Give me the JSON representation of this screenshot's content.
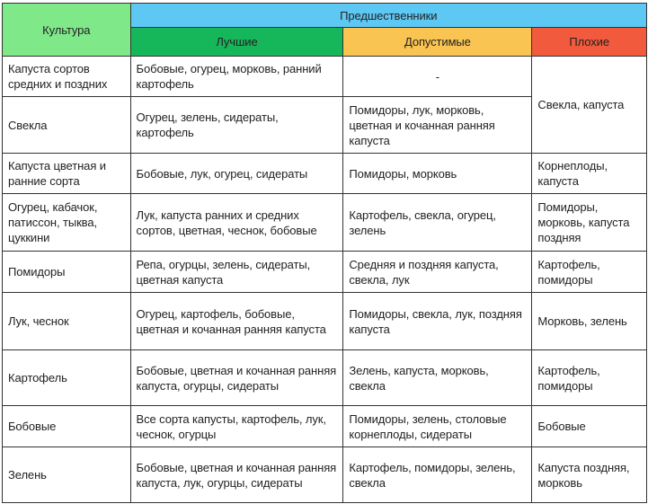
{
  "header": {
    "culture": "Культура",
    "predecessors": "Предшественники",
    "best": "Лучшие",
    "acceptable": "Допустимые",
    "bad": "Плохие"
  },
  "colors": {
    "culture": "#7fe889",
    "predecessors": "#5ec8f5",
    "best": "#16b75a",
    "acceptable": "#f9c451",
    "bad": "#f15a3c"
  },
  "rows": [
    {
      "culture": "Капуста сортов средних и поздних",
      "best": "Бобовые, огурец, морковь, ранний картофель",
      "acceptable": "-",
      "bad": "Свекла, капуста"
    },
    {
      "culture": "Свекла",
      "best": "Огурец, зелень, сидераты, картофель",
      "acceptable": "Помидоры, лук, морковь, цветная и кочанная ранняя капуста"
    },
    {
      "culture": "Капуста цветная и ранние сорта",
      "best": "Бобовые, лук, огурец, сидераты",
      "acceptable": "Помидоры, морковь",
      "bad": "Корнеплоды, капуста"
    },
    {
      "culture": "Огурец, кабачок, патиссон, тыква, цуккини",
      "best": "Лук, капуста ранних и средних сортов, цветная, чеснок, бобовые",
      "acceptable": "Картофель, свекла, огурец, зелень",
      "bad": "Помидоры, морковь, капуста поздняя"
    },
    {
      "culture": "Помидоры",
      "best": "Репа, огурцы, зелень, сидераты, цветная капуста",
      "acceptable": "Средняя и поздняя капуста, свекла, лук",
      "bad": "Картофель, помидоры"
    },
    {
      "culture": "Лук, чеснок",
      "best": "Огурец, картофель, бобовые, цветная и кочанная ранняя капуста",
      "acceptable": "Помидоры, свекла, лук, поздняя капуста",
      "bad": "Морковь, зелень"
    },
    {
      "culture": "Картофель",
      "best": "Бобовые, цветная и кочанная ранняя капуста, огурцы, сидераты",
      "acceptable": "Зелень, капуста, морковь, свекла",
      "bad": "Картофель, помидоры"
    },
    {
      "culture": "Бобовые",
      "best": "Все сорта капусты, картофель, лук, чеснок, огурцы",
      "acceptable": "Помидоры, зелень, столовые корнеплоды, сидераты",
      "bad": "Бобовые"
    },
    {
      "culture": "Зелень",
      "best": "Бобовые, цветная и кочанная ранняя капуста, лук, огурцы, сидераты",
      "acceptable": "Картофель, помидоры, зелень, свекла",
      "bad": "Капуста поздняя, морковь"
    }
  ]
}
